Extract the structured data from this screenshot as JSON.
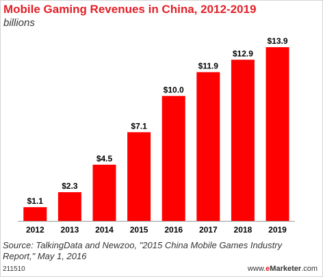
{
  "header": {
    "title": "Mobile Gaming Revenues in China, 2012-2019",
    "subtitle": "billions"
  },
  "footer": {
    "source": "Source: TalkingData and Newzoo, \"2015 China Mobile Games Industry Report,\" May 1, 2016",
    "chart_id": "211510",
    "brand_prefix": "www.",
    "brand_accent": "e",
    "brand_name": "Marketer",
    "brand_suffix": ".com"
  },
  "colors": {
    "bar": "#ff0000",
    "title": "#e41e26",
    "axis": "#999999"
  },
  "chart_data": {
    "type": "bar",
    "title": "Mobile Gaming Revenues in China, 2012-2019",
    "subtitle": "billions",
    "categories": [
      "2012",
      "2013",
      "2014",
      "2015",
      "2016",
      "2017",
      "2018",
      "2019"
    ],
    "values": [
      1.1,
      2.3,
      4.5,
      7.1,
      10.0,
      11.9,
      12.9,
      13.9
    ],
    "value_labels": [
      "$1.1",
      "$2.3",
      "$4.5",
      "$7.1",
      "$10.0",
      "$11.9",
      "$12.9",
      "$13.9"
    ],
    "ylim": [
      0,
      13.9
    ],
    "grid": false,
    "legend": "none"
  }
}
